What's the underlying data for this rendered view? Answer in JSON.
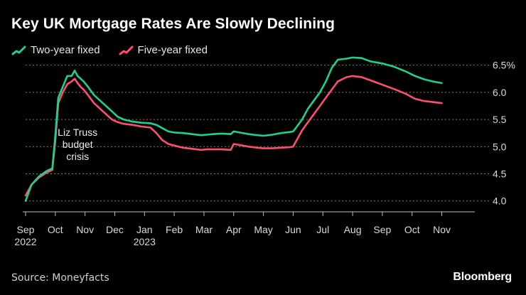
{
  "title": "Key UK Mortgage Rates Are Slowly Declining",
  "source": "Source: Moneyfacts",
  "brand": "Bloomberg",
  "colors": {
    "two_year": "#1fd18a",
    "five_year": "#ff4f6d",
    "grid": "#7a7a7a",
    "axis": "#bdbdbd"
  },
  "chart_data": {
    "type": "line",
    "title": "Key UK Mortgage Rates Are Slowly Declining",
    "ylabel": "%",
    "ylim": [
      3.8,
      6.6
    ],
    "x_range": [
      0,
      14.8
    ],
    "y_ticks": [
      "6.5%",
      "6.0",
      "5.5",
      "5.0",
      "4.5",
      "4.0"
    ],
    "y_tick_values": [
      6.5,
      6.0,
      5.5,
      5.0,
      4.5,
      4.0
    ],
    "x_ticks": [
      {
        "label": "Sep",
        "sub": "2022",
        "pos": 0
      },
      {
        "label": "Oct",
        "sub": "",
        "pos": 1
      },
      {
        "label": "Nov",
        "sub": "",
        "pos": 2
      },
      {
        "label": "Dec",
        "sub": "",
        "pos": 3
      },
      {
        "label": "Jan",
        "sub": "2023",
        "pos": 4
      },
      {
        "label": "Feb",
        "sub": "",
        "pos": 5
      },
      {
        "label": "Mar",
        "sub": "",
        "pos": 6
      },
      {
        "label": "Apr",
        "sub": "",
        "pos": 7
      },
      {
        "label": "May",
        "sub": "",
        "pos": 8
      },
      {
        "label": "Jun",
        "sub": "",
        "pos": 9
      },
      {
        "label": "Jul",
        "sub": "",
        "pos": 10
      },
      {
        "label": "Aug",
        "sub": "",
        "pos": 11
      },
      {
        "label": "Sep",
        "sub": "",
        "pos": 12
      },
      {
        "label": "Oct",
        "sub": "",
        "pos": 13
      },
      {
        "label": "Nov",
        "sub": "",
        "pos": 14
      }
    ],
    "annotation": {
      "lines": [
        "Liz Truss",
        "budget",
        "crisis"
      ],
      "x": 1.75,
      "y": 5.2
    },
    "series": [
      {
        "name": "Two-year fixed",
        "color": "#1fd18a",
        "x": [
          0,
          0.2,
          0.45,
          0.7,
          0.9,
          1.0,
          1.1,
          1.25,
          1.4,
          1.55,
          1.65,
          1.75,
          1.85,
          1.95,
          2.1,
          2.3,
          2.6,
          2.9,
          3.1,
          3.3,
          3.6,
          3.9,
          4.2,
          4.4,
          4.6,
          4.8,
          5.0,
          5.3,
          5.6,
          5.9,
          6.1,
          6.3,
          6.6,
          6.9,
          7.0,
          7.2,
          7.5,
          7.8,
          8.0,
          8.3,
          8.6,
          8.9,
          9.0,
          9.1,
          9.3,
          9.5,
          9.7,
          9.9,
          10.1,
          10.3,
          10.5,
          10.8,
          11.0,
          11.3,
          11.6,
          12.0,
          12.4,
          12.8,
          13.1,
          13.4,
          13.7,
          14.0
        ],
        "values": [
          4.0,
          4.3,
          4.45,
          4.55,
          4.6,
          5.2,
          5.9,
          6.1,
          6.3,
          6.3,
          6.4,
          6.3,
          6.25,
          6.2,
          6.1,
          5.95,
          5.8,
          5.65,
          5.55,
          5.5,
          5.46,
          5.44,
          5.43,
          5.4,
          5.34,
          5.28,
          5.26,
          5.25,
          5.23,
          5.21,
          5.22,
          5.23,
          5.24,
          5.23,
          5.28,
          5.26,
          5.23,
          5.21,
          5.2,
          5.22,
          5.25,
          5.27,
          5.28,
          5.35,
          5.5,
          5.7,
          5.85,
          6.0,
          6.2,
          6.45,
          6.6,
          6.62,
          6.64,
          6.63,
          6.57,
          6.53,
          6.47,
          6.38,
          6.3,
          6.24,
          6.2,
          6.17
        ]
      },
      {
        "name": "Five-year fixed",
        "color": "#ff4f6d",
        "x": [
          0,
          0.2,
          0.45,
          0.7,
          0.9,
          1.0,
          1.1,
          1.25,
          1.4,
          1.55,
          1.65,
          1.75,
          1.85,
          1.95,
          2.1,
          2.3,
          2.6,
          2.9,
          3.1,
          3.3,
          3.6,
          3.9,
          4.2,
          4.4,
          4.6,
          4.8,
          5.0,
          5.3,
          5.6,
          5.9,
          6.1,
          6.3,
          6.6,
          6.9,
          7.0,
          7.2,
          7.5,
          7.8,
          8.0,
          8.3,
          8.6,
          8.9,
          9.0,
          9.1,
          9.3,
          9.5,
          9.7,
          9.9,
          10.1,
          10.3,
          10.5,
          10.8,
          11.0,
          11.3,
          11.6,
          12.0,
          12.4,
          12.8,
          13.1,
          13.4,
          13.7,
          14.0
        ],
        "values": [
          4.1,
          4.3,
          4.43,
          4.52,
          4.57,
          5.1,
          5.8,
          6.0,
          6.15,
          6.2,
          6.25,
          6.17,
          6.1,
          6.05,
          5.95,
          5.8,
          5.65,
          5.5,
          5.45,
          5.42,
          5.4,
          5.37,
          5.35,
          5.25,
          5.12,
          5.05,
          5.02,
          4.98,
          4.96,
          4.94,
          4.95,
          4.95,
          4.95,
          4.94,
          5.05,
          5.03,
          5.0,
          4.98,
          4.97,
          4.97,
          4.98,
          4.99,
          5.0,
          5.1,
          5.3,
          5.45,
          5.6,
          5.75,
          5.9,
          6.05,
          6.2,
          6.28,
          6.3,
          6.28,
          6.22,
          6.14,
          6.06,
          5.97,
          5.88,
          5.84,
          5.82,
          5.8
        ]
      }
    ]
  }
}
